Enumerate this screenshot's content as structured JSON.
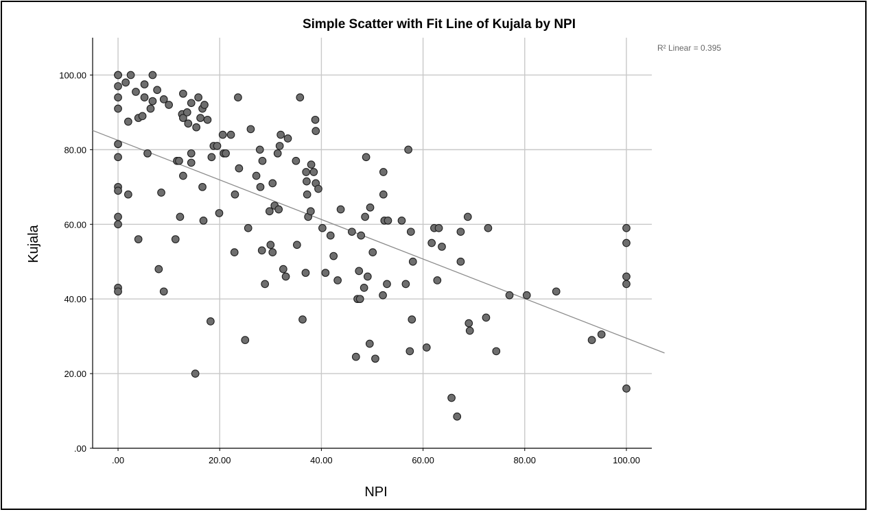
{
  "chart_data": {
    "type": "scatter",
    "title": "Simple Scatter with Fit Line of Kujala by NPI",
    "xlabel": "NPI",
    "ylabel": "Kujala",
    "xlim": [
      -5,
      105
    ],
    "ylim": [
      0,
      110
    ],
    "x_ticks": [
      0,
      20,
      40,
      60,
      80,
      100
    ],
    "x_tick_labels": [
      ".00",
      "20.00",
      "40.00",
      "60.00",
      "80.00",
      "100.00"
    ],
    "y_ticks": [
      0,
      20,
      40,
      60,
      80,
      100
    ],
    "y_tick_labels": [
      ".00",
      "20.00",
      "40.00",
      "60.00",
      "80.00",
      "100.00"
    ],
    "grid": true,
    "annotation": "R² Linear = 0.395",
    "fit_line": {
      "type": "linear",
      "intercept": 82.5,
      "slope": -0.53
    },
    "colors": {
      "marker_fill": "#6e6e6e",
      "marker_edge": "#1e1e1e",
      "fit_line": "#8c8c8c",
      "grid": "#c8c8c8"
    },
    "points": [
      [
        0,
        100
      ],
      [
        0,
        100
      ],
      [
        0,
        97
      ],
      [
        0,
        94
      ],
      [
        0,
        91
      ],
      [
        0,
        81.5
      ],
      [
        0,
        78
      ],
      [
        0,
        70
      ],
      [
        0,
        69
      ],
      [
        0,
        62
      ],
      [
        0,
        60
      ],
      [
        0,
        43
      ],
      [
        0,
        42
      ],
      [
        1.5,
        98
      ],
      [
        2,
        87.5
      ],
      [
        2.5,
        100
      ],
      [
        2,
        68
      ],
      [
        3.5,
        95.5
      ],
      [
        4,
        88.5
      ],
      [
        4,
        56
      ],
      [
        4.8,
        89
      ],
      [
        5.2,
        97.5
      ],
      [
        5.2,
        94
      ],
      [
        5.8,
        79
      ],
      [
        6.4,
        91
      ],
      [
        6.8,
        93
      ],
      [
        6.8,
        100
      ],
      [
        7.7,
        96
      ],
      [
        8,
        48
      ],
      [
        8.5,
        68.5
      ],
      [
        9,
        93.5
      ],
      [
        9,
        42
      ],
      [
        10,
        92
      ],
      [
        11.3,
        56
      ],
      [
        11.6,
        77
      ],
      [
        12,
        77
      ],
      [
        12.2,
        62
      ],
      [
        12.6,
        89.5
      ],
      [
        12.8,
        88.5
      ],
      [
        12.8,
        73
      ],
      [
        12.8,
        95
      ],
      [
        13.6,
        90
      ],
      [
        13.8,
        87
      ],
      [
        14.4,
        92.5
      ],
      [
        14.4,
        79
      ],
      [
        14.4,
        76.5
      ],
      [
        15.2,
        20
      ],
      [
        15.4,
        86
      ],
      [
        15.8,
        94
      ],
      [
        16.2,
        88.5
      ],
      [
        16.6,
        91
      ],
      [
        16.6,
        70
      ],
      [
        16.8,
        61
      ],
      [
        17,
        92
      ],
      [
        17.6,
        88
      ],
      [
        18.2,
        34
      ],
      [
        18.4,
        78
      ],
      [
        18.8,
        81
      ],
      [
        19.5,
        81
      ],
      [
        19.9,
        63
      ],
      [
        20.6,
        84
      ],
      [
        20.8,
        79
      ],
      [
        21.2,
        79
      ],
      [
        22.2,
        84
      ],
      [
        22.9,
        52.5
      ],
      [
        23,
        68
      ],
      [
        23.6,
        94
      ],
      [
        23.8,
        75
      ],
      [
        25,
        29
      ],
      [
        25.6,
        59
      ],
      [
        26.1,
        85.5
      ],
      [
        27.2,
        73
      ],
      [
        27.9,
        80
      ],
      [
        28,
        70
      ],
      [
        28.3,
        53
      ],
      [
        28.4,
        77
      ],
      [
        28.9,
        44
      ],
      [
        29.8,
        63.5
      ],
      [
        30,
        54.5
      ],
      [
        30.4,
        52.5
      ],
      [
        30.4,
        71
      ],
      [
        30.8,
        65
      ],
      [
        31.4,
        79
      ],
      [
        31.6,
        64
      ],
      [
        31.8,
        81
      ],
      [
        32,
        84
      ],
      [
        32.5,
        48
      ],
      [
        33,
        46
      ],
      [
        33.4,
        83
      ],
      [
        35,
        77
      ],
      [
        35.2,
        54.5
      ],
      [
        35.8,
        94
      ],
      [
        36.3,
        34.5
      ],
      [
        36.9,
        47
      ],
      [
        37,
        74
      ],
      [
        37.1,
        71.5
      ],
      [
        37.2,
        68
      ],
      [
        37.4,
        62
      ],
      [
        37.9,
        63.5
      ],
      [
        38,
        76
      ],
      [
        38.5,
        74
      ],
      [
        38.8,
        88
      ],
      [
        38.9,
        85
      ],
      [
        38.9,
        71
      ],
      [
        39.4,
        69.5
      ],
      [
        40.2,
        59
      ],
      [
        40.8,
        47
      ],
      [
        41.8,
        57
      ],
      [
        42.4,
        51.5
      ],
      [
        43.2,
        45
      ],
      [
        43.8,
        64
      ],
      [
        46,
        58
      ],
      [
        46.8,
        24.5
      ],
      [
        47.1,
        40
      ],
      [
        47.4,
        47.5
      ],
      [
        47.6,
        40
      ],
      [
        47.8,
        57
      ],
      [
        48.4,
        43
      ],
      [
        48.6,
        62
      ],
      [
        48.8,
        78
      ],
      [
        49.1,
        46
      ],
      [
        49.5,
        28
      ],
      [
        49.6,
        64.5
      ],
      [
        50.1,
        52.5
      ],
      [
        50.6,
        24
      ],
      [
        52.1,
        41
      ],
      [
        52.2,
        74
      ],
      [
        52.2,
        68
      ],
      [
        52.4,
        61
      ],
      [
        52.9,
        44
      ],
      [
        53.1,
        61
      ],
      [
        55.8,
        61
      ],
      [
        56.6,
        44
      ],
      [
        57.1,
        80
      ],
      [
        57.4,
        26
      ],
      [
        57.6,
        58
      ],
      [
        57.8,
        34.5
      ],
      [
        58,
        50
      ],
      [
        60.7,
        27
      ],
      [
        61.7,
        55
      ],
      [
        62.2,
        59
      ],
      [
        62.8,
        45
      ],
      [
        63.1,
        59
      ],
      [
        63.7,
        54
      ],
      [
        65.6,
        13.5
      ],
      [
        66.7,
        8.5
      ],
      [
        67.4,
        58
      ],
      [
        67.4,
        50
      ],
      [
        68.8,
        62
      ],
      [
        69,
        33.5
      ],
      [
        69.2,
        31.5
      ],
      [
        72.4,
        35
      ],
      [
        72.8,
        59
      ],
      [
        74.4,
        26
      ],
      [
        77,
        41
      ],
      [
        80.4,
        41
      ],
      [
        86.2,
        42
      ],
      [
        93.2,
        29
      ],
      [
        95.1,
        30.5
      ],
      [
        100,
        59
      ],
      [
        100,
        55
      ],
      [
        100,
        46
      ],
      [
        100,
        44
      ],
      [
        100,
        16
      ]
    ]
  }
}
